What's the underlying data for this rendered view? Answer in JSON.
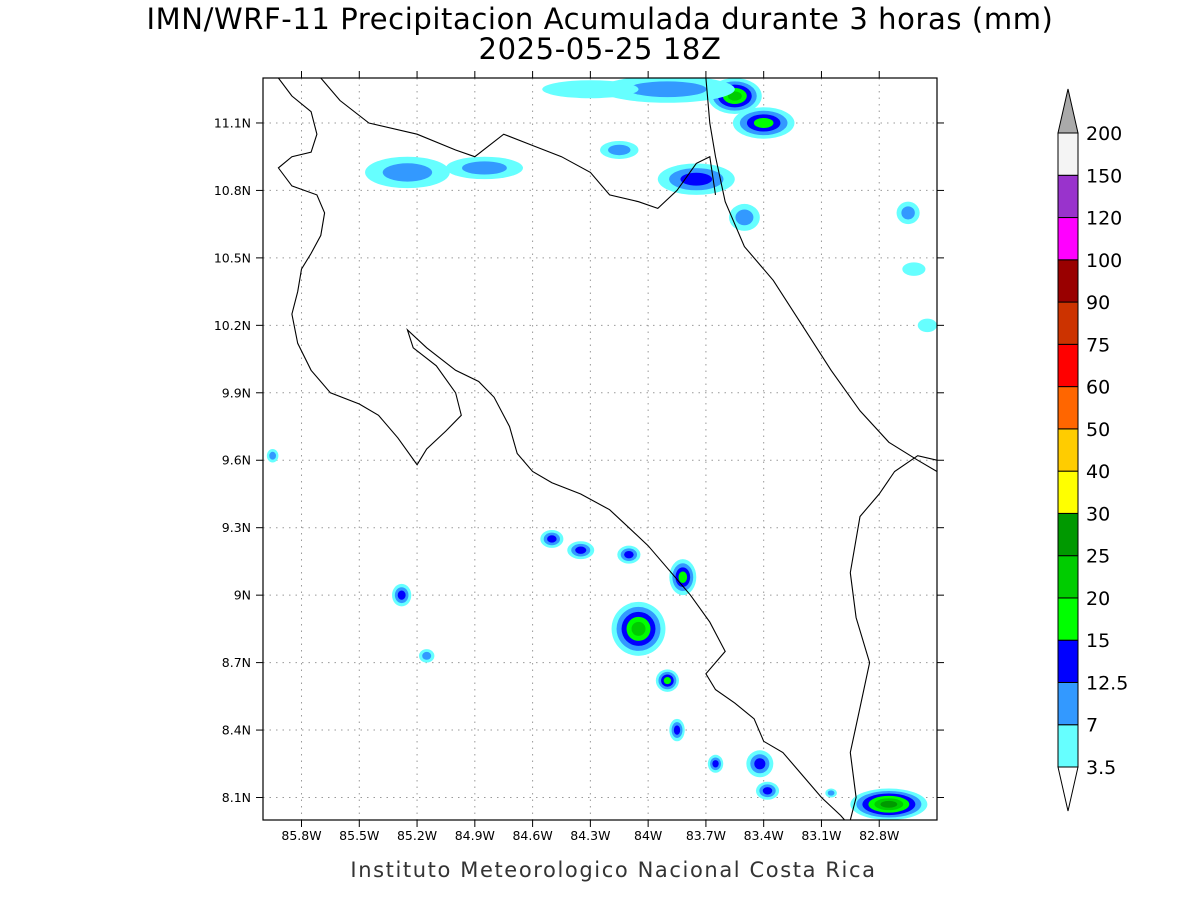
{
  "title_line1": "IMN/WRF-11 Precipitacion Acumulada durante 3 horas (mm)",
  "title_line2": "2025-05-25 18Z",
  "credit": "Instituto Meteorologico Nacional Costa Rica",
  "map": {
    "lon_range": [
      -86.0,
      -82.5
    ],
    "lat_range": [
      8.0,
      11.3
    ],
    "lat_ticks": [
      {
        "value": 11.1,
        "label": "11.1N"
      },
      {
        "value": 10.8,
        "label": "10.8N"
      },
      {
        "value": 10.5,
        "label": "10.5N"
      },
      {
        "value": 10.2,
        "label": "10.2N"
      },
      {
        "value": 9.9,
        "label": "9.9N"
      },
      {
        "value": 9.6,
        "label": "9.6N"
      },
      {
        "value": 9.3,
        "label": "9.3N"
      },
      {
        "value": 9.0,
        "label": "9N"
      },
      {
        "value": 8.7,
        "label": "8.7N"
      },
      {
        "value": 8.4,
        "label": "8.4N"
      },
      {
        "value": 8.1,
        "label": "8.1N"
      }
    ],
    "lon_ticks": [
      {
        "value": -85.8,
        "label": "85.8W"
      },
      {
        "value": -85.5,
        "label": "85.5W"
      },
      {
        "value": -85.2,
        "label": "85.2W"
      },
      {
        "value": -84.9,
        "label": "84.9W"
      },
      {
        "value": -84.6,
        "label": "84.6W"
      },
      {
        "value": -84.3,
        "label": "84.3W"
      },
      {
        "value": -84.0,
        "label": "84W"
      },
      {
        "value": -83.7,
        "label": "83.7W"
      },
      {
        "value": -83.4,
        "label": "83.4W"
      },
      {
        "value": -83.1,
        "label": "83.1W"
      },
      {
        "value": -82.8,
        "label": "82.8W"
      }
    ],
    "grid": true,
    "coastline_lonlat": [
      [
        -85.92,
        11.3
      ],
      [
        -85.85,
        11.22
      ],
      [
        -85.75,
        11.15
      ],
      [
        -85.72,
        11.05
      ],
      [
        -85.75,
        10.97
      ],
      [
        -85.85,
        10.95
      ],
      [
        -85.92,
        10.9
      ],
      [
        -85.85,
        10.82
      ],
      [
        -85.72,
        10.78
      ],
      [
        -85.68,
        10.7
      ],
      [
        -85.7,
        10.6
      ],
      [
        -85.75,
        10.52
      ],
      [
        -85.8,
        10.45
      ],
      [
        -85.82,
        10.35
      ],
      [
        -85.85,
        10.25
      ],
      [
        -85.82,
        10.12
      ],
      [
        -85.75,
        10.0
      ],
      [
        -85.65,
        9.9
      ],
      [
        -85.5,
        9.85
      ],
      [
        -85.4,
        9.8
      ],
      [
        -85.3,
        9.7
      ],
      [
        -85.2,
        9.58
      ],
      [
        -85.15,
        9.65
      ],
      [
        -85.05,
        9.73
      ],
      [
        -84.97,
        9.8
      ],
      [
        -85.0,
        9.9
      ],
      [
        -85.1,
        10.02
      ],
      [
        -85.22,
        10.1
      ],
      [
        -85.25,
        10.18
      ],
      [
        -85.15,
        10.1
      ],
      [
        -85.0,
        10.0
      ],
      [
        -84.88,
        9.95
      ],
      [
        -84.8,
        9.88
      ],
      [
        -84.72,
        9.75
      ],
      [
        -84.68,
        9.63
      ],
      [
        -84.6,
        9.55
      ],
      [
        -84.5,
        9.5
      ],
      [
        -84.35,
        9.45
      ],
      [
        -84.2,
        9.38
      ],
      [
        -84.1,
        9.3
      ],
      [
        -84.0,
        9.22
      ],
      [
        -83.88,
        9.1
      ],
      [
        -83.78,
        9.0
      ],
      [
        -83.68,
        8.88
      ],
      [
        -83.6,
        8.75
      ],
      [
        -83.7,
        8.65
      ],
      [
        -83.65,
        8.58
      ],
      [
        -83.55,
        8.52
      ],
      [
        -83.45,
        8.45
      ],
      [
        -83.4,
        8.35
      ],
      [
        -83.3,
        8.3
      ],
      [
        -83.2,
        8.2
      ],
      [
        -83.1,
        8.1
      ],
      [
        -83.0,
        8.02
      ],
      [
        -82.98,
        8.0
      ]
    ],
    "caribbean_lonlat": [
      [
        -83.7,
        11.3
      ],
      [
        -83.68,
        11.1
      ],
      [
        -83.65,
        10.95
      ],
      [
        -83.6,
        10.75
      ],
      [
        -83.5,
        10.55
      ],
      [
        -83.35,
        10.4
      ],
      [
        -83.2,
        10.2
      ],
      [
        -83.05,
        10.0
      ],
      [
        -82.9,
        9.82
      ],
      [
        -82.75,
        9.68
      ],
      [
        -82.6,
        9.6
      ],
      [
        -82.5,
        9.55
      ]
    ],
    "nicaragua_border_lonlat": [
      [
        -85.7,
        11.3
      ],
      [
        -85.6,
        11.2
      ],
      [
        -85.45,
        11.1
      ],
      [
        -85.2,
        11.05
      ],
      [
        -85.0,
        10.98
      ],
      [
        -84.9,
        10.95
      ],
      [
        -84.75,
        11.05
      ],
      [
        -84.6,
        11.0
      ],
      [
        -84.45,
        10.95
      ],
      [
        -84.3,
        10.88
      ],
      [
        -84.2,
        10.78
      ],
      [
        -84.05,
        10.75
      ],
      [
        -83.95,
        10.72
      ],
      [
        -83.85,
        10.8
      ],
      [
        -83.75,
        10.92
      ],
      [
        -83.68,
        10.95
      ],
      [
        -83.65,
        10.78
      ]
    ],
    "panama_border_lonlat": [
      [
        -82.5,
        9.6
      ],
      [
        -82.6,
        9.62
      ],
      [
        -82.72,
        9.55
      ],
      [
        -82.8,
        9.45
      ],
      [
        -82.9,
        9.35
      ],
      [
        -82.95,
        9.1
      ],
      [
        -82.92,
        8.9
      ],
      [
        -82.85,
        8.7
      ],
      [
        -82.9,
        8.5
      ],
      [
        -82.95,
        8.3
      ],
      [
        -82.92,
        8.1
      ],
      [
        -82.95,
        8.0
      ]
    ],
    "precip_cells": [
      {
        "lon": -83.55,
        "lat": 11.22,
        "rx": 0.14,
        "ry": 0.08,
        "level": 4
      },
      {
        "lon": -83.4,
        "lat": 11.1,
        "rx": 0.16,
        "ry": 0.07,
        "level": 3
      },
      {
        "lon": -83.9,
        "lat": 11.25,
        "rx": 0.35,
        "ry": 0.06,
        "level": 1
      },
      {
        "lon": -84.3,
        "lat": 11.25,
        "rx": 0.25,
        "ry": 0.04,
        "level": 0
      },
      {
        "lon": -85.25,
        "lat": 10.88,
        "rx": 0.22,
        "ry": 0.07,
        "level": 1
      },
      {
        "lon": -84.85,
        "lat": 10.9,
        "rx": 0.2,
        "ry": 0.05,
        "level": 1
      },
      {
        "lon": -83.75,
        "lat": 10.85,
        "rx": 0.2,
        "ry": 0.07,
        "level": 2
      },
      {
        "lon": -84.15,
        "lat": 10.98,
        "rx": 0.1,
        "ry": 0.04,
        "level": 1
      },
      {
        "lon": -83.5,
        "lat": 10.68,
        "rx": 0.08,
        "ry": 0.06,
        "level": 1
      },
      {
        "lon": -82.65,
        "lat": 10.7,
        "rx": 0.06,
        "ry": 0.05,
        "level": 1
      },
      {
        "lon": -82.62,
        "lat": 10.45,
        "rx": 0.06,
        "ry": 0.03,
        "level": 0
      },
      {
        "lon": -82.55,
        "lat": 10.2,
        "rx": 0.05,
        "ry": 0.03,
        "level": 0
      },
      {
        "lon": -85.95,
        "lat": 9.62,
        "rx": 0.03,
        "ry": 0.03,
        "level": 1
      },
      {
        "lon": -84.5,
        "lat": 9.25,
        "rx": 0.06,
        "ry": 0.04,
        "level": 2
      },
      {
        "lon": -84.35,
        "lat": 9.2,
        "rx": 0.07,
        "ry": 0.04,
        "level": 2
      },
      {
        "lon": -84.1,
        "lat": 9.18,
        "rx": 0.06,
        "ry": 0.04,
        "level": 2
      },
      {
        "lon": -83.82,
        "lat": 9.08,
        "rx": 0.07,
        "ry": 0.08,
        "level": 3
      },
      {
        "lon": -85.28,
        "lat": 9.0,
        "rx": 0.05,
        "ry": 0.05,
        "level": 2
      },
      {
        "lon": -84.05,
        "lat": 8.85,
        "rx": 0.14,
        "ry": 0.12,
        "level": 4
      },
      {
        "lon": -83.9,
        "lat": 8.62,
        "rx": 0.06,
        "ry": 0.05,
        "level": 3
      },
      {
        "lon": -85.15,
        "lat": 8.73,
        "rx": 0.04,
        "ry": 0.03,
        "level": 1
      },
      {
        "lon": -83.85,
        "lat": 8.4,
        "rx": 0.04,
        "ry": 0.05,
        "level": 2
      },
      {
        "lon": -83.65,
        "lat": 8.25,
        "rx": 0.04,
        "ry": 0.04,
        "level": 2
      },
      {
        "lon": -83.42,
        "lat": 8.25,
        "rx": 0.07,
        "ry": 0.06,
        "level": 2
      },
      {
        "lon": -83.38,
        "lat": 8.13,
        "rx": 0.06,
        "ry": 0.04,
        "level": 2
      },
      {
        "lon": -82.75,
        "lat": 8.07,
        "rx": 0.2,
        "ry": 0.07,
        "level": 5
      },
      {
        "lon": -83.05,
        "lat": 8.12,
        "rx": 0.03,
        "ry": 0.02,
        "level": 1
      }
    ]
  },
  "colorbar": {
    "labels": [
      "3.5",
      "7",
      "12.5",
      "15",
      "20",
      "25",
      "30",
      "40",
      "50",
      "60",
      "75",
      "90",
      "100",
      "120",
      "150",
      "200"
    ],
    "colors": [
      "#66ffff",
      "#3399ff",
      "#0000ff",
      "#00ff00",
      "#00cc00",
      "#009900",
      "#ffff00",
      "#ffcc00",
      "#ff6600",
      "#ff0000",
      "#cc3300",
      "#990000",
      "#ff00ff",
      "#9933cc",
      "#f4f4f4"
    ],
    "lower_arrow_color": "#ffffff",
    "upper_arrow_color": "#aaaaaa"
  }
}
